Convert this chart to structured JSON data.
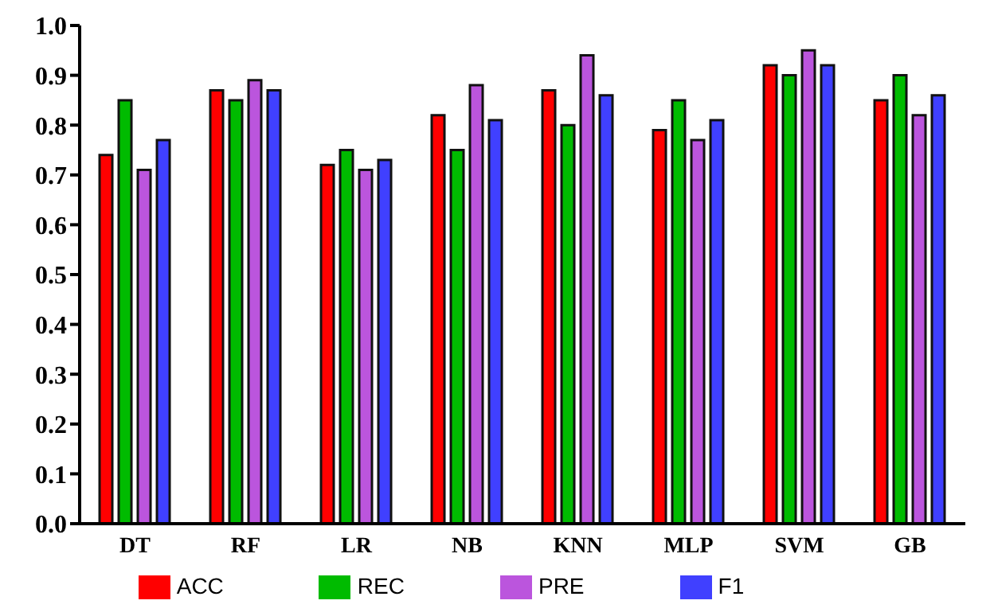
{
  "chart_data": {
    "type": "bar",
    "categories": [
      "DT",
      "RF",
      "LR",
      "NB",
      "KNN",
      "MLP",
      "SVM",
      "GB"
    ],
    "series": [
      {
        "name": "ACC",
        "color": "#ff0000",
        "values": [
          0.74,
          0.87,
          0.72,
          0.82,
          0.87,
          0.79,
          0.92,
          0.85
        ]
      },
      {
        "name": "REC",
        "color": "#00bb00",
        "values": [
          0.85,
          0.85,
          0.75,
          0.75,
          0.8,
          0.85,
          0.9,
          0.9
        ]
      },
      {
        "name": "PRE",
        "color": "#bb55dd",
        "values": [
          0.71,
          0.89,
          0.71,
          0.88,
          0.94,
          0.77,
          0.95,
          0.82
        ]
      },
      {
        "name": "F1",
        "color": "#4040ff",
        "values": [
          0.77,
          0.87,
          0.73,
          0.81,
          0.86,
          0.81,
          0.92,
          0.86
        ]
      }
    ],
    "ylim": [
      0,
      1.0
    ],
    "yticks": [
      {
        "value": 0,
        "label": "0.0"
      },
      0.1,
      0.2,
      0.3,
      0.4,
      0.5,
      0.6,
      0.7,
      0.8,
      0.9,
      {
        "value": 1.0,
        "label": "1.0"
      }
    ],
    "legend": "bottom"
  }
}
